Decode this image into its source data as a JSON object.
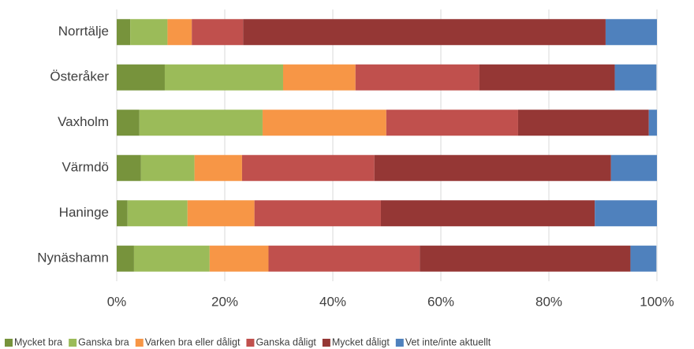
{
  "chart_data": {
    "type": "stacked_barh",
    "categories": [
      "Norrtälje",
      "Österåker",
      "Vaxholm",
      "Värmdö",
      "Haninge",
      "Nynäshamn"
    ],
    "series": [
      {
        "name": "Mycket bra",
        "color": "#77933c",
        "values": [
          2.5,
          8.9,
          4.2,
          4.5,
          2.0,
          3.2
        ]
      },
      {
        "name": "Ganska bra",
        "color": "#9bbb59",
        "values": [
          6.9,
          21.9,
          22.8,
          9.9,
          11.1,
          14.0
        ]
      },
      {
        "name": "Varken bra eller dåligt",
        "color": "#f79646",
        "values": [
          4.5,
          13.4,
          22.9,
          8.8,
          12.4,
          10.9
        ]
      },
      {
        "name": "Ganska dåligt",
        "color": "#c0504d",
        "values": [
          9.5,
          22.9,
          24.4,
          24.5,
          23.4,
          28.0
        ]
      },
      {
        "name": "Mycket dåligt",
        "color": "#953735",
        "values": [
          67.1,
          25.1,
          24.2,
          43.8,
          39.6,
          39.0
        ]
      },
      {
        "name": "Vet inte/inte aktuellt",
        "color": "#4f81bd",
        "values": [
          9.5,
          7.7,
          1.5,
          8.5,
          11.5,
          4.8
        ]
      }
    ],
    "xlim": [
      0,
      100
    ],
    "xticks": [
      {
        "value": 0,
        "label": "0%"
      },
      {
        "value": 20,
        "label": "20%"
      },
      {
        "value": 40,
        "label": "40%"
      },
      {
        "value": 60,
        "label": "60%"
      },
      {
        "value": 80,
        "label": "80%"
      },
      {
        "value": 100,
        "label": "100%"
      }
    ],
    "grid": true,
    "legend": "bottom"
  }
}
